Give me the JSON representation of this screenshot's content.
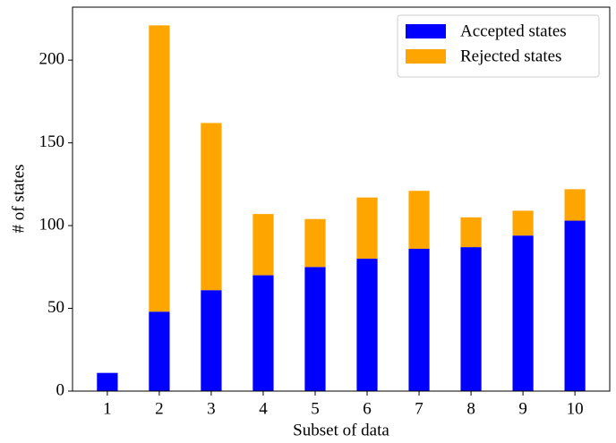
{
  "chart_data": {
    "type": "stacked-bar",
    "xlabel": "Subset of data",
    "ylabel": "# of states",
    "categories": [
      "1",
      "2",
      "3",
      "4",
      "5",
      "6",
      "7",
      "8",
      "9",
      "10"
    ],
    "series": [
      {
        "name": "Accepted states",
        "color": "#0000ff",
        "values": [
          11,
          48,
          61,
          70,
          75,
          80,
          86,
          87,
          94,
          103
        ]
      },
      {
        "name": "Rejected states",
        "color": "#ffa500",
        "values": [
          0,
          173,
          101,
          37,
          29,
          37,
          35,
          18,
          15,
          19
        ]
      }
    ],
    "ylim": [
      0,
      232
    ],
    "yticks": [
      0,
      50,
      100,
      150,
      200
    ],
    "legend": "upper right",
    "grid": false
  }
}
